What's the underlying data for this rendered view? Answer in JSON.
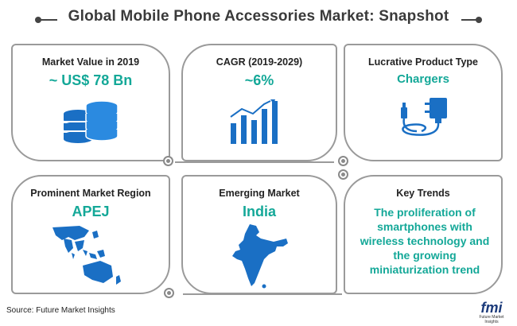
{
  "title": "Global Mobile Phone Accessories Market: Snapshot",
  "cards": [
    {
      "label": "Market Value in 2019",
      "value": "~ US$ 78 Bn",
      "icon": "database-coins-icon"
    },
    {
      "label": "CAGR (2019-2029)",
      "value": "~6%",
      "icon": "bar-chart-growth-icon"
    },
    {
      "label": "Lucrative Product Type",
      "value": "Chargers",
      "icon": "charger-icon"
    },
    {
      "label": "Prominent Market Region",
      "value": "APEJ",
      "icon": "apej-map-icon"
    },
    {
      "label": "Emerging Market",
      "value": "India",
      "icon": "india-map-icon"
    },
    {
      "label": "Key Trends",
      "value": "The proliferation of smartphones with wireless technology and the growing miniaturization trend",
      "icon": ""
    }
  ],
  "source": "Source: Future Market Insights",
  "logo": {
    "text": "fmi",
    "subtext": "Future Market Insights"
  },
  "colors": {
    "accent": "#14a898",
    "icon_blue": "#1a6fc4",
    "border": "#9a9a9a",
    "title": "#3a3a3a"
  }
}
